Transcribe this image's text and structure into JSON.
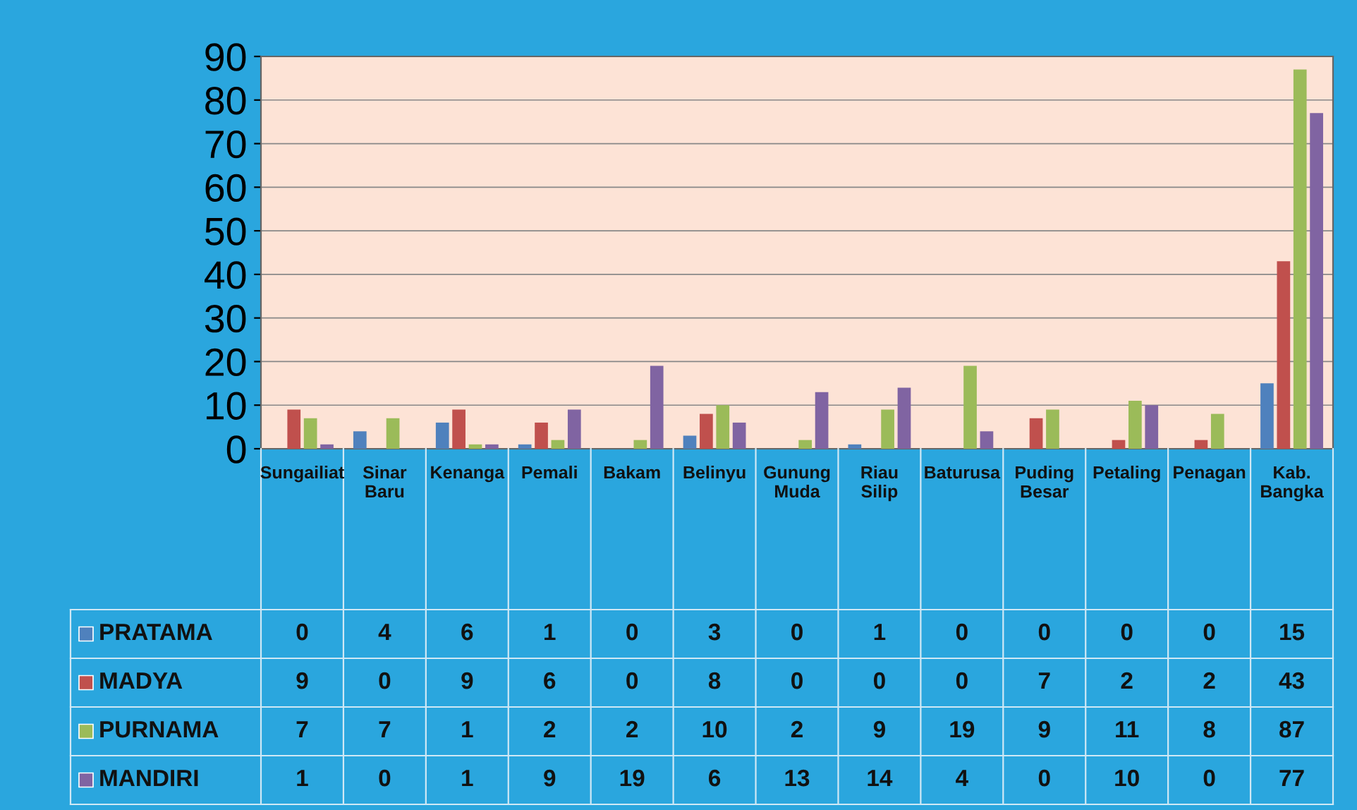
{
  "chart_data": {
    "type": "bar",
    "categories": [
      "Sungailiat",
      "Sinar Baru",
      "Kenanga",
      "Pemali",
      "Bakam",
      "Belinyu",
      "Gunung Muda",
      "Riau Silip",
      "Baturusa",
      "Puding Besar",
      "Petaling",
      "Penagan",
      "Kab. Bangka"
    ],
    "series": [
      {
        "name": "PRATAMA",
        "color": "#4f81bd",
        "values": [
          0,
          4,
          6,
          1,
          0,
          3,
          0,
          1,
          0,
          0,
          0,
          0,
          15
        ]
      },
      {
        "name": "MADYA",
        "color": "#c0504d",
        "values": [
          9,
          0,
          9,
          6,
          0,
          8,
          0,
          0,
          0,
          7,
          2,
          2,
          43
        ]
      },
      {
        "name": "PURNAMA",
        "color": "#9bbb59",
        "values": [
          7,
          7,
          1,
          2,
          2,
          10,
          2,
          9,
          19,
          9,
          11,
          8,
          87
        ]
      },
      {
        "name": "MANDIRI",
        "color": "#8064a2",
        "values": [
          1,
          0,
          1,
          9,
          19,
          6,
          13,
          14,
          4,
          0,
          10,
          0,
          77
        ]
      }
    ],
    "ylim": [
      0,
      90
    ],
    "yticks": [
      0,
      10,
      20,
      30,
      40,
      50,
      60,
      70,
      80,
      90
    ],
    "grid": "y",
    "data_labels": true,
    "legend": "bottom"
  }
}
